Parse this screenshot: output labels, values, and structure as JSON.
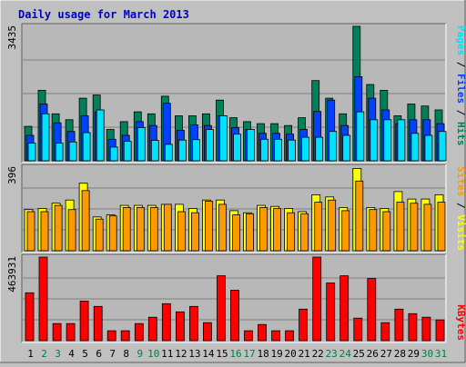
{
  "chart_data": {
    "type": "bar",
    "title": "Daily usage for March 2013",
    "colors": {
      "background": "#C0C0C0",
      "plot_bg": "#B8B8B8",
      "title": "#0000CC",
      "hits": "#00805A",
      "files": "#0040FF",
      "pages": "#00E0FF",
      "visits": "#FFFF00",
      "sites": "#FF9900",
      "kbytes": "#FF0000",
      "weekend_label": "#008040",
      "weekday_label": "#000000"
    },
    "categories": [
      "1",
      "2",
      "3",
      "4",
      "5",
      "6",
      "7",
      "8",
      "9",
      "10",
      "11",
      "12",
      "13",
      "14",
      "15",
      "16",
      "17",
      "18",
      "19",
      "20",
      "21",
      "22",
      "23",
      "24",
      "25",
      "26",
      "27",
      "28",
      "29",
      "30",
      "31"
    ],
    "weekend_days": [
      "2",
      "3",
      "9",
      "10",
      "16",
      "17",
      "23",
      "24",
      "30",
      "31"
    ],
    "panels": [
      {
        "name": "hits-files-pages",
        "axis_max_label": "3435",
        "ylim": [
          0,
          3435
        ],
        "right_legend": [
          {
            "text": "Pages",
            "color": "#00E0FF"
          },
          {
            "text": " / ",
            "color": "#000000"
          },
          {
            "text": "Files",
            "color": "#0040FF"
          },
          {
            "text": " / ",
            "color": "#000000"
          },
          {
            "text": "Hits",
            "color": "#00805A"
          }
        ],
        "series": [
          {
            "name": "Hits",
            "values": [
              880,
              1800,
              1200,
              1050,
              1600,
              1680,
              800,
              1000,
              1250,
              1200,
              1650,
              1150,
              1150,
              1200,
              1550,
              1100,
              1000,
              950,
              950,
              900,
              1100,
              2050,
              1600,
              1200,
              3435,
              1950,
              1800,
              1150,
              1450,
              1400,
              1300
            ]
          },
          {
            "name": "Files",
            "values": [
              650,
              1450,
              970,
              750,
              1150,
              1250,
              550,
              650,
              1000,
              900,
              1470,
              780,
              920,
              900,
              1150,
              850,
              800,
              700,
              700,
              680,
              800,
              1260,
              1550,
              900,
              2150,
              1600,
              1300,
              950,
              1050,
              1050,
              950
            ]
          },
          {
            "name": "Pages",
            "values": [
              450,
              1200,
              450,
              480,
              720,
              1300,
              350,
              500,
              850,
              520,
              420,
              530,
              540,
              800,
              1150,
              680,
              800,
              550,
              550,
              530,
              600,
              600,
              750,
              650,
              1250,
              1050,
              1050,
              1050,
              700,
              650,
              750
            ]
          }
        ]
      },
      {
        "name": "visits-sites",
        "axis_max_label": "396",
        "ylim": [
          0,
          396
        ],
        "right_legend": [
          {
            "text": "Sites",
            "color": "#FF9900"
          },
          {
            "text": " / ",
            "color": "#000000"
          },
          {
            "text": "Visits",
            "color": "#FFFF00"
          }
        ],
        "series": [
          {
            "name": "Visits",
            "values": [
              195,
              200,
              225,
              240,
              320,
              160,
              170,
              215,
              215,
              215,
              220,
              220,
              200,
              240,
              240,
              190,
              180,
              215,
              210,
              200,
              185,
              265,
              255,
              205,
              390,
              205,
              200,
              280,
              245,
              245,
              265
            ]
          },
          {
            "name": "Sites",
            "values": [
              185,
              185,
              215,
              195,
              285,
              150,
              165,
              205,
              205,
              205,
              220,
              185,
              180,
              235,
              220,
              170,
              175,
              205,
              200,
              180,
              175,
              230,
              240,
              190,
              330,
              195,
              185,
              230,
              225,
              220,
              230
            ]
          }
        ]
      },
      {
        "name": "kbytes",
        "axis_max_label": "463931",
        "ylim": [
          0,
          463931
        ],
        "right_legend": [
          {
            "text": "KBytes",
            "color": "#FF0000"
          }
        ],
        "series": [
          {
            "name": "KBytes",
            "values": [
              266000,
              463931,
              95000,
              95000,
              220000,
              190000,
              55000,
              55000,
              95000,
              130000,
              205000,
              160000,
              190000,
              100000,
              360000,
              280000,
              55000,
              90000,
              55000,
              55000,
              175000,
              463931,
              320000,
              360000,
              125000,
              345000,
              100000,
              175000,
              150000,
              130000,
              115000
            ]
          }
        ]
      }
    ]
  }
}
